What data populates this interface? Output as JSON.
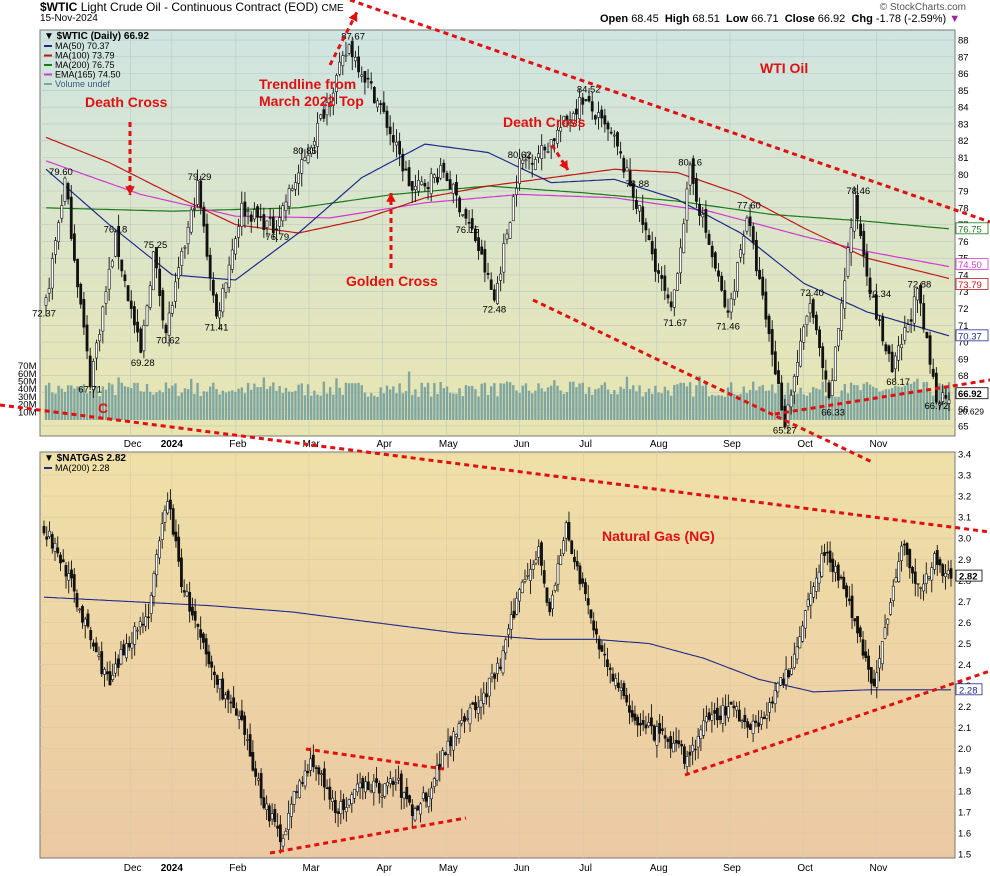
{
  "header": {
    "title_symbol": "$WTIC",
    "title_rest": "Light Crude Oil - Continuous Contract (EOD)",
    "exchange": "CME",
    "date": "15-Nov-2024",
    "watermark": "© StockCharts.com",
    "ohlc": {
      "open_label": "Open",
      "open": "68.45",
      "high_label": "High",
      "high": "68.51",
      "low_label": "Low",
      "low": "66.71",
      "close_label": "Close",
      "close": "66.92",
      "chg_label": "Chg",
      "chg": "-1.78 (-2.59%)"
    }
  },
  "colors": {
    "ma50": "#1f2a8a",
    "ma100": "#c01818",
    "ma200": "#1a7a1a",
    "ema165": "#d03ad0",
    "annotation": "#e01010",
    "candle": "#111111",
    "volume": "#7fa6a0",
    "top_bg_top": "#cfe5e2",
    "top_bg_bottom": "#e9e5b0",
    "bottom_bg_top": "#efe0a8",
    "bottom_bg_bottom": "#ecc9a3",
    "ng_ma": "#1f2a8a"
  },
  "chart_data": [
    {
      "type": "line",
      "subtype": "candlestick",
      "symbol_label": "$WTIC (Daily) 66.92",
      "legend": [
        {
          "label": "MA(50) 70.37",
          "color": "#1f2a8a"
        },
        {
          "label": "MA(100) 73.79",
          "color": "#c01818"
        },
        {
          "label": "MA(200) 76.75",
          "color": "#1a7a1a"
        },
        {
          "label": "EMA(165) 74.50",
          "color": "#d03ad0"
        },
        {
          "label": "Volume undef",
          "color": "#7fa6a0"
        }
      ],
      "legend_placement": "top-left",
      "x_ticks": [
        "Dec",
        "2024",
        "Feb",
        "Mar",
        "Apr",
        "May",
        "Jun",
        "Jul",
        "Aug",
        "Sep",
        "Oct",
        "Nov"
      ],
      "y_ticks": [
        65,
        66,
        67,
        68,
        69,
        70,
        71,
        72,
        73,
        74,
        75,
        76,
        77,
        78,
        79,
        80,
        81,
        82,
        83,
        84,
        85,
        86,
        87,
        88
      ],
      "ylim": [
        64.4,
        88.6
      ],
      "volume_ticks": [
        "10M",
        "20M",
        "30M",
        "40M",
        "50M",
        "60M",
        "70M"
      ],
      "last_values": {
        "close": "66.92",
        "ma50": "70.37",
        "ema165": "74.50",
        "ma100": "73.79",
        "ma200": "76.75",
        "volume": "20.629"
      },
      "close_anchors": [
        {
          "d": 0,
          "v": 72.37
        },
        {
          "d": 6,
          "v": 79.6
        },
        {
          "d": 14,
          "v": 67.71
        },
        {
          "d": 22,
          "v": 76.18
        },
        {
          "d": 30,
          "v": 69.28
        },
        {
          "d": 34,
          "v": 75.25
        },
        {
          "d": 38,
          "v": 70.62
        },
        {
          "d": 48,
          "v": 79.29
        },
        {
          "d": 54,
          "v": 71.41
        },
        {
          "d": 62,
          "v": 78.0
        },
        {
          "d": 72,
          "v": 76.79
        },
        {
          "d": 82,
          "v": 80.85
        },
        {
          "d": 96,
          "v": 87.67
        },
        {
          "d": 106,
          "v": 84.0
        },
        {
          "d": 116,
          "v": 79.0
        },
        {
          "d": 126,
          "v": 80.2
        },
        {
          "d": 136,
          "v": 76.15
        },
        {
          "d": 142,
          "v": 72.48
        },
        {
          "d": 150,
          "v": 80.62
        },
        {
          "d": 158,
          "v": 81.5
        },
        {
          "d": 170,
          "v": 84.52
        },
        {
          "d": 180,
          "v": 82.0
        },
        {
          "d": 186,
          "v": 78.88
        },
        {
          "d": 198,
          "v": 71.67
        },
        {
          "d": 204,
          "v": 80.16
        },
        {
          "d": 216,
          "v": 71.46
        },
        {
          "d": 222,
          "v": 77.6
        },
        {
          "d": 234,
          "v": 65.27
        },
        {
          "d": 242,
          "v": 72.4
        },
        {
          "d": 248,
          "v": 66.33
        },
        {
          "d": 256,
          "v": 78.46
        },
        {
          "d": 262,
          "v": 72.34
        },
        {
          "d": 268,
          "v": 68.17
        },
        {
          "d": 276,
          "v": 72.88
        },
        {
          "d": 282,
          "v": 66.72
        },
        {
          "d": 286,
          "v": 66.92
        }
      ],
      "ma50_anchors": [
        {
          "d": 0,
          "v": 80.3
        },
        {
          "d": 20,
          "v": 77.0
        },
        {
          "d": 40,
          "v": 74.0
        },
        {
          "d": 60,
          "v": 73.7
        },
        {
          "d": 80,
          "v": 76.5
        },
        {
          "d": 100,
          "v": 79.8
        },
        {
          "d": 120,
          "v": 81.8
        },
        {
          "d": 140,
          "v": 81.3
        },
        {
          "d": 160,
          "v": 79.5
        },
        {
          "d": 180,
          "v": 79.7
        },
        {
          "d": 200,
          "v": 78.5
        },
        {
          "d": 220,
          "v": 76.5
        },
        {
          "d": 240,
          "v": 73.5
        },
        {
          "d": 260,
          "v": 71.8
        },
        {
          "d": 286,
          "v": 70.37
        }
      ],
      "ma100_anchors": [
        {
          "d": 0,
          "v": 82.2
        },
        {
          "d": 20,
          "v": 80.7
        },
        {
          "d": 40,
          "v": 78.8
        },
        {
          "d": 60,
          "v": 77.0
        },
        {
          "d": 80,
          "v": 76.5
        },
        {
          "d": 100,
          "v": 77.3
        },
        {
          "d": 120,
          "v": 78.6
        },
        {
          "d": 140,
          "v": 79.3
        },
        {
          "d": 160,
          "v": 79.8
        },
        {
          "d": 180,
          "v": 80.3
        },
        {
          "d": 200,
          "v": 80.1
        },
        {
          "d": 220,
          "v": 78.8
        },
        {
          "d": 240,
          "v": 76.8
        },
        {
          "d": 260,
          "v": 75.0
        },
        {
          "d": 286,
          "v": 73.79
        }
      ],
      "ma200_anchors": [
        {
          "d": 0,
          "v": 78.0
        },
        {
          "d": 40,
          "v": 77.8
        },
        {
          "d": 80,
          "v": 78.0
        },
        {
          "d": 110,
          "v": 78.8
        },
        {
          "d": 140,
          "v": 79.3
        },
        {
          "d": 170,
          "v": 78.9
        },
        {
          "d": 200,
          "v": 78.4
        },
        {
          "d": 230,
          "v": 77.6
        },
        {
          "d": 260,
          "v": 77.2
        },
        {
          "d": 286,
          "v": 76.75
        }
      ],
      "ema165_anchors": [
        {
          "d": 0,
          "v": 80.8
        },
        {
          "d": 30,
          "v": 78.8
        },
        {
          "d": 60,
          "v": 77.5
        },
        {
          "d": 90,
          "v": 77.4
        },
        {
          "d": 120,
          "v": 78.3
        },
        {
          "d": 150,
          "v": 78.8
        },
        {
          "d": 180,
          "v": 78.6
        },
        {
          "d": 210,
          "v": 77.8
        },
        {
          "d": 240,
          "v": 76.3
        },
        {
          "d": 260,
          "v": 75.4
        },
        {
          "d": 286,
          "v": 74.5
        }
      ],
      "annotations": [
        "Death Cross",
        "C",
        "Trendline from March 2022 Top",
        "Golden Cross",
        "Death Cross",
        "WTI Oil"
      ]
    },
    {
      "type": "line",
      "subtype": "candlestick",
      "symbol_label": "$NATGAS 2.82",
      "legend": [
        {
          "label": "MA(200) 2.28",
          "color": "#1f2a8a"
        }
      ],
      "legend_placement": "top-left",
      "x_ticks": [
        "Dec",
        "2024",
        "Feb",
        "Mar",
        "Apr",
        "May",
        "Jun",
        "Jul",
        "Aug",
        "Sep",
        "Oct",
        "Nov"
      ],
      "y_ticks": [
        "1.5",
        "1.6",
        "1.7",
        "1.8",
        "1.9",
        "2.0",
        "2.1",
        "2.2",
        "2.3",
        "2.4",
        "2.5",
        "2.6",
        "2.7",
        "2.8",
        "2.9",
        "3.0",
        "3.1",
        "3.2",
        "3.3",
        "3.4"
      ],
      "ylim": [
        1.5,
        3.4
      ],
      "last_values": {
        "close": "2.82",
        "ma200": "2.28"
      },
      "close_anchors": [
        {
          "d": 0,
          "v": 3.05
        },
        {
          "d": 8,
          "v": 2.85
        },
        {
          "d": 16,
          "v": 2.55
        },
        {
          "d": 24,
          "v": 2.3
        },
        {
          "d": 30,
          "v": 2.5
        },
        {
          "d": 38,
          "v": 2.65
        },
        {
          "d": 45,
          "v": 3.2
        },
        {
          "d": 50,
          "v": 2.8
        },
        {
          "d": 56,
          "v": 2.55
        },
        {
          "d": 60,
          "v": 2.4
        },
        {
          "d": 66,
          "v": 2.25
        },
        {
          "d": 72,
          "v": 2.1
        },
        {
          "d": 80,
          "v": 1.75
        },
        {
          "d": 86,
          "v": 1.57
        },
        {
          "d": 92,
          "v": 1.8
        },
        {
          "d": 98,
          "v": 1.95
        },
        {
          "d": 104,
          "v": 1.75
        },
        {
          "d": 110,
          "v": 1.7
        },
        {
          "d": 116,
          "v": 1.85
        },
        {
          "d": 122,
          "v": 1.8
        },
        {
          "d": 128,
          "v": 1.85
        },
        {
          "d": 134,
          "v": 1.7
        },
        {
          "d": 140,
          "v": 1.8
        },
        {
          "d": 146,
          "v": 2.0
        },
        {
          "d": 152,
          "v": 2.15
        },
        {
          "d": 158,
          "v": 2.2
        },
        {
          "d": 166,
          "v": 2.4
        },
        {
          "d": 174,
          "v": 2.8
        },
        {
          "d": 180,
          "v": 2.95
        },
        {
          "d": 184,
          "v": 2.65
        },
        {
          "d": 190,
          "v": 3.05
        },
        {
          "d": 196,
          "v": 2.75
        },
        {
          "d": 202,
          "v": 2.5
        },
        {
          "d": 210,
          "v": 2.25
        },
        {
          "d": 218,
          "v": 2.1
        },
        {
          "d": 226,
          "v": 2.05
        },
        {
          "d": 234,
          "v": 1.95
        },
        {
          "d": 242,
          "v": 2.15
        },
        {
          "d": 250,
          "v": 2.2
        },
        {
          "d": 258,
          "v": 2.1
        },
        {
          "d": 266,
          "v": 2.25
        },
        {
          "d": 272,
          "v": 2.4
        },
        {
          "d": 278,
          "v": 2.7
        },
        {
          "d": 284,
          "v": 2.95
        },
        {
          "d": 290,
          "v": 2.8
        },
        {
          "d": 296,
          "v": 2.55
        },
        {
          "d": 302,
          "v": 2.3
        },
        {
          "d": 306,
          "v": 2.55
        },
        {
          "d": 312,
          "v": 3.0
        },
        {
          "d": 318,
          "v": 2.75
        },
        {
          "d": 324,
          "v": 2.9
        },
        {
          "d": 330,
          "v": 2.82
        }
      ],
      "ma_anchors": [
        {
          "d": 0,
          "v": 2.72
        },
        {
          "d": 30,
          "v": 2.7
        },
        {
          "d": 60,
          "v": 2.68
        },
        {
          "d": 90,
          "v": 2.65
        },
        {
          "d": 120,
          "v": 2.6
        },
        {
          "d": 150,
          "v": 2.55
        },
        {
          "d": 180,
          "v": 2.52
        },
        {
          "d": 200,
          "v": 2.52
        },
        {
          "d": 220,
          "v": 2.5
        },
        {
          "d": 240,
          "v": 2.43
        },
        {
          "d": 260,
          "v": 2.33
        },
        {
          "d": 280,
          "v": 2.27
        },
        {
          "d": 300,
          "v": 2.28
        },
        {
          "d": 330,
          "v": 2.28
        }
      ],
      "annotations": [
        "Natural Gas (NG)"
      ]
    }
  ]
}
